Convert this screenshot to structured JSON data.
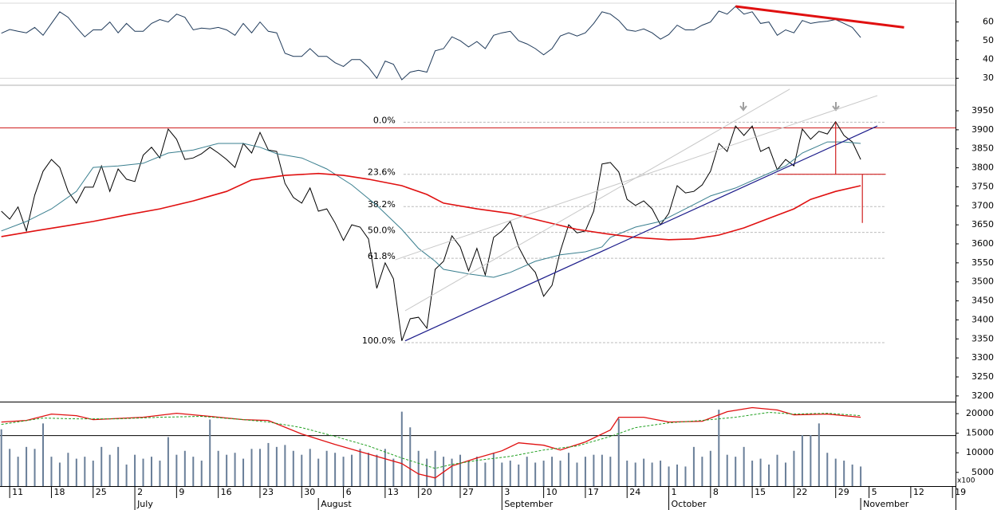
{
  "chart_data": [
    {
      "type": "line",
      "xlim": [
        0,
        114.5
      ],
      "ylim": [
        26.7,
        71.7
      ],
      "yticks": [
        30,
        40,
        50,
        60
      ],
      "hlines": [
        {
          "value": 70,
          "color": "#d8d8d8"
        },
        {
          "value": 30,
          "color": "#d8d8d8"
        }
      ],
      "x": [
        0,
        1,
        2,
        3,
        4,
        5,
        6,
        7,
        8,
        9,
        10,
        11,
        12,
        13,
        14,
        15,
        16,
        17,
        18,
        19,
        20,
        21,
        22,
        23,
        24,
        25,
        26,
        27,
        28,
        29,
        30,
        31,
        32,
        33,
        34,
        35,
        36,
        37,
        38,
        39,
        40,
        41,
        42,
        43,
        44,
        45,
        46,
        47,
        48,
        49,
        50,
        51,
        52,
        53,
        54,
        55,
        56,
        57,
        58,
        59,
        60,
        61,
        62,
        63,
        64,
        65,
        66,
        67,
        68,
        69,
        70,
        71,
        72,
        73,
        74,
        75,
        76,
        77,
        78,
        79,
        80,
        81,
        82,
        83,
        84,
        85,
        86,
        87,
        88,
        89,
        90,
        91,
        92,
        93,
        94,
        95,
        96,
        97,
        98,
        99,
        100,
        101,
        102,
        103
      ],
      "series": [
        {
          "color": "#1f3a5a",
          "values": [
            54,
            56,
            55,
            54.2,
            57.1,
            52.9,
            59.2,
            65.4,
            62.5,
            57.1,
            52.1,
            55.8,
            55.8,
            60,
            54.2,
            59.2,
            55,
            55,
            59.2,
            61.3,
            60,
            64.2,
            62.5,
            55.8,
            56.7,
            56.3,
            57.1,
            55.8,
            52.9,
            59.2,
            54.2,
            60,
            55,
            54.2,
            43.3,
            41.7,
            41.7,
            45.8,
            41.7,
            41.7,
            38.3,
            36.3,
            40,
            40,
            35.8,
            30,
            39.2,
            37.5,
            29.2,
            33.3,
            34.2,
            33.3,
            44.6,
            45.8,
            52.1,
            50,
            46.7,
            49.6,
            45.8,
            52.9,
            54.2,
            55,
            50,
            48.3,
            45.8,
            42.5,
            45.8,
            52.5,
            54.2,
            52.5,
            54.2,
            59.2,
            65.4,
            64.2,
            60.8,
            55.8,
            55,
            56.3,
            54.2,
            50.8,
            53.3,
            58.3,
            55.8,
            55.8,
            58.3,
            60,
            65.8,
            64.2,
            68.3,
            64.2,
            65.4,
            59.2,
            60,
            52.9,
            55.8,
            54.2,
            60.8,
            59.2,
            60,
            60.4,
            61.3,
            59.2,
            57.1,
            51.7
          ]
        }
      ],
      "trendlines": [
        {
          "color": "#e01010",
          "width": 3,
          "x": [
            88,
            108.2
          ],
          "values": [
            68.3,
            57.1
          ]
        }
      ]
    },
    {
      "type": "line",
      "xlim": [
        0,
        114.5
      ],
      "ylim": [
        3185,
        4015
      ],
      "yticks": [
        3200,
        3250,
        3300,
        3350,
        3400,
        3450,
        3500,
        3550,
        3600,
        3650,
        3700,
        3750,
        3800,
        3850,
        3900,
        3950
      ],
      "hlines": [
        {
          "value": 3905,
          "color": "#d02020"
        }
      ],
      "fib": {
        "color": "#2020a0",
        "x": [
          48.2,
          106
        ],
        "levels": [
          {
            "value": 3920,
            "label": "0.0%"
          },
          {
            "value": 3783,
            "label": "23.6%"
          },
          {
            "value": 3698,
            "label": "38.2%"
          },
          {
            "value": 3630,
            "label": "50.0%"
          },
          {
            "value": 3562,
            "label": "61.8%"
          },
          {
            "value": 3340,
            "label": "100.0%"
          }
        ]
      },
      "x": [
        0,
        1,
        2,
        3,
        4,
        5,
        6,
        7,
        8,
        9,
        10,
        11,
        12,
        13,
        14,
        15,
        16,
        17,
        18,
        19,
        20,
        21,
        22,
        23,
        24,
        25,
        26,
        27,
        28,
        29,
        30,
        31,
        32,
        33,
        34,
        35,
        36,
        37,
        38,
        39,
        40,
        41,
        42,
        43,
        44,
        45,
        46,
        47,
        48,
        49,
        50,
        51,
        52,
        53,
        54,
        55,
        56,
        57,
        58,
        59,
        60,
        61,
        62,
        63,
        64,
        65,
        66,
        67,
        68,
        69,
        70,
        71,
        72,
        73,
        74,
        75,
        76,
        77,
        78,
        79,
        80,
        81,
        82,
        83,
        84,
        85,
        86,
        87,
        88,
        89,
        90,
        91,
        92,
        93,
        94,
        95,
        96,
        97,
        98,
        99,
        100,
        101,
        102,
        103
      ],
      "series": [
        {
          "color": "#000000",
          "values": [
            3686,
            3665,
            3697,
            3634,
            3728,
            3791,
            3822,
            3801,
            3738,
            3707,
            3749,
            3749,
            3805,
            3738,
            3797,
            3770,
            3764,
            3833,
            3854,
            3826,
            3902,
            3875,
            3822,
            3826,
            3837,
            3854,
            3839,
            3822,
            3801,
            3864,
            3839,
            3893,
            3847,
            3843,
            3759,
            3722,
            3707,
            3747,
            3686,
            3692,
            3655,
            3609,
            3650,
            3644,
            3613,
            3483,
            3550,
            3508,
            3345,
            3403,
            3407,
            3378,
            3533,
            3554,
            3621,
            3592,
            3529,
            3588,
            3518,
            3617,
            3634,
            3659,
            3592,
            3550,
            3525,
            3462,
            3491,
            3581,
            3650,
            3629,
            3634,
            3686,
            3810,
            3814,
            3789,
            3717,
            3701,
            3713,
            3692,
            3650,
            3680,
            3753,
            3734,
            3738,
            3755,
            3791,
            3864,
            3843,
            3910,
            3885,
            3910,
            3843,
            3854,
            3795,
            3822,
            3805,
            3902,
            3875,
            3896,
            3889,
            3921,
            3885,
            3868,
            3822
          ]
        },
        {
          "color": "#3a7f8f",
          "x": [
            0,
            3,
            6,
            9,
            11,
            14,
            17,
            20,
            23,
            26,
            29,
            31,
            33,
            36,
            39,
            42,
            45,
            48,
            50,
            52,
            53,
            56,
            59,
            61,
            64,
            67,
            70,
            72,
            73,
            76,
            79,
            82,
            85,
            88,
            91,
            94,
            96,
            99,
            101,
            103
          ],
          "values": [
            3634,
            3659,
            3692,
            3738,
            3801,
            3805,
            3812,
            3839,
            3847,
            3864,
            3864,
            3854,
            3837,
            3826,
            3797,
            3755,
            3701,
            3638,
            3588,
            3554,
            3533,
            3521,
            3512,
            3525,
            3554,
            3571,
            3579,
            3592,
            3617,
            3644,
            3659,
            3692,
            3726,
            3747,
            3776,
            3805,
            3839,
            3868,
            3868,
            3864
          ]
        },
        {
          "color": "#e01010",
          "width": 1.6,
          "x": [
            0,
            4,
            8,
            11,
            15,
            19,
            23,
            27,
            30,
            34,
            38,
            41,
            44,
            48,
            51,
            53,
            57,
            61,
            65,
            69,
            73,
            76,
            80,
            83,
            86,
            89,
            92,
            95,
            97,
            100,
            103
          ],
          "values": [
            3619,
            3634,
            3648,
            3659,
            3676,
            3692,
            3713,
            3738,
            3768,
            3780,
            3785,
            3780,
            3770,
            3753,
            3730,
            3707,
            3692,
            3680,
            3659,
            3638,
            3625,
            3617,
            3611,
            3613,
            3623,
            3642,
            3667,
            3692,
            3717,
            3738,
            3753
          ]
        }
      ],
      "trendlines": [
        {
          "color": "#1a1a8a",
          "width": 1.2,
          "x": [
            48.4,
            105
          ],
          "values": [
            3345,
            3910
          ]
        },
        {
          "color": "#c8c8c8",
          "width": 1,
          "x": [
            48.4,
            94.5
          ],
          "values": [
            3424,
            4007
          ]
        },
        {
          "color": "#c8c8c8",
          "width": 1,
          "x": [
            47.2,
            105
          ],
          "values": [
            3558,
            3990
          ]
        },
        {
          "color": "#d02020",
          "width": 1.2,
          "x": [
            93,
            106
          ],
          "values": [
            3783,
            3783
          ]
        },
        {
          "color": "#d02020",
          "width": 1.2,
          "x": [
            100,
            100
          ],
          "values": [
            3920,
            3783
          ]
        },
        {
          "color": "#d02020",
          "width": 1.2,
          "x": [
            103.2,
            103.2
          ],
          "values": [
            3783,
            3655
          ]
        }
      ]
    },
    {
      "type": "bar",
      "xlim": [
        0,
        114.5
      ],
      "ylim": [
        1500,
        22860
      ],
      "yticks": [
        5000,
        10000,
        15000,
        20000
      ],
      "unit_label": "x100",
      "color": "#6a7f99",
      "hlines": [
        {
          "value": 14400,
          "color": "#000000"
        }
      ],
      "x": [
        0,
        1,
        2,
        3,
        4,
        5,
        6,
        7,
        8,
        9,
        10,
        11,
        12,
        13,
        14,
        15,
        16,
        17,
        18,
        19,
        20,
        21,
        22,
        23,
        24,
        25,
        26,
        27,
        28,
        29,
        30,
        31,
        32,
        33,
        34,
        35,
        36,
        37,
        38,
        39,
        40,
        41,
        42,
        43,
        44,
        45,
        46,
        47,
        48,
        49,
        50,
        51,
        52,
        53,
        54,
        55,
        56,
        57,
        58,
        59,
        60,
        61,
        62,
        63,
        64,
        65,
        66,
        67,
        68,
        69,
        70,
        71,
        72,
        73,
        74,
        75,
        76,
        77,
        78,
        79,
        80,
        81,
        82,
        83,
        84,
        85,
        86,
        87,
        88,
        89,
        90,
        91,
        92,
        93,
        94,
        95,
        96,
        97,
        98,
        99,
        100,
        101,
        102,
        103
      ],
      "values": [
        16000,
        11000,
        9000,
        11500,
        11000,
        17500,
        9000,
        7500,
        10000,
        8500,
        9000,
        8000,
        11500,
        9500,
        11500,
        7000,
        9500,
        8500,
        9000,
        8000,
        14000,
        9500,
        10500,
        9000,
        8000,
        18500,
        10500,
        9500,
        10000,
        8500,
        11000,
        11000,
        12500,
        11500,
        12000,
        10500,
        9500,
        11000,
        8500,
        10500,
        10000,
        9000,
        9500,
        11000,
        10000,
        9500,
        11000,
        8500,
        20500,
        16500,
        10500,
        8500,
        10500,
        9000,
        8500,
        9500,
        8000,
        9000,
        7500,
        10000,
        7500,
        8000,
        7000,
        9000,
        7500,
        8000,
        9000,
        8000,
        10000,
        7500,
        9000,
        9500,
        9500,
        9000,
        18700,
        8000,
        7500,
        8500,
        7500,
        8000,
        6500,
        7000,
        6500,
        11500,
        9000,
        10500,
        21000,
        9500,
        9000,
        11500,
        8000,
        8500,
        7000,
        9500,
        7500,
        10500,
        14500,
        14500,
        17500,
        10000,
        8500,
        8000,
        7000,
        6500
      ],
      "series": [
        {
          "color": "#e01010",
          "width": 1.3,
          "x": [
            0,
            3,
            6,
            9,
            11,
            17,
            21,
            25,
            29,
            32,
            36,
            40,
            44,
            48,
            50,
            52,
            54,
            57,
            60,
            62,
            65,
            67,
            70,
            73,
            74,
            77,
            80,
            84,
            87,
            90,
            93,
            95,
            99,
            103
          ],
          "values": [
            17860,
            18270,
            19900,
            19490,
            18470,
            19080,
            20100,
            19290,
            18470,
            18270,
            14800,
            12140,
            9690,
            7250,
            4590,
            3570,
            6630,
            8670,
            10510,
            12550,
            11940,
            10710,
            12760,
            15820,
            19080,
            19080,
            17860,
            18060,
            20510,
            21530,
            20920,
            19690,
            19900,
            19080
          ]
        },
        {
          "color": "#20a020",
          "dashed": true,
          "x": [
            0,
            5,
            9,
            14,
            19,
            24,
            29,
            32,
            36,
            40,
            44,
            48,
            52,
            54,
            57,
            61,
            65,
            69,
            73,
            76,
            80,
            84,
            88,
            92,
            95,
            99,
            103
          ],
          "values": [
            17250,
            18880,
            18670,
            18670,
            19080,
            19290,
            18470,
            17860,
            16430,
            14180,
            11740,
            8670,
            6020,
            7040,
            8060,
            9080,
            10710,
            11740,
            14180,
            16430,
            17650,
            18270,
            19080,
            20310,
            19900,
            20100,
            19490
          ]
        }
      ],
      "xticks": [
        {
          "value": 1,
          "label": "11"
        },
        {
          "value": 6,
          "label": "18"
        },
        {
          "value": 11,
          "label": "25"
        },
        {
          "value": 16,
          "label": "2"
        },
        {
          "value": 21,
          "label": "9"
        },
        {
          "value": 26,
          "label": "16"
        },
        {
          "value": 31,
          "label": "23"
        },
        {
          "value": 36,
          "label": "30"
        },
        {
          "value": 41,
          "label": "6"
        },
        {
          "value": 46,
          "label": "13"
        },
        {
          "value": 50,
          "label": "20"
        },
        {
          "value": 55,
          "label": "27"
        },
        {
          "value": 60,
          "label": "3"
        },
        {
          "value": 65,
          "label": "10"
        },
        {
          "value": 70,
          "label": "17"
        },
        {
          "value": 75,
          "label": "24"
        },
        {
          "value": 80,
          "label": "1"
        },
        {
          "value": 85,
          "label": "8"
        },
        {
          "value": 90,
          "label": "15"
        },
        {
          "value": 95,
          "label": "22"
        },
        {
          "value": 100,
          "label": "29"
        },
        {
          "value": 104,
          "label": "5"
        },
        {
          "value": 109,
          "label": "12"
        },
        {
          "value": 114,
          "label": "19"
        }
      ],
      "months": [
        {
          "value": 16,
          "label": "July"
        },
        {
          "value": 38,
          "label": "August"
        },
        {
          "value": 60,
          "label": "September"
        },
        {
          "value": 80,
          "label": "October"
        },
        {
          "value": 103,
          "label": "November"
        }
      ]
    }
  ]
}
